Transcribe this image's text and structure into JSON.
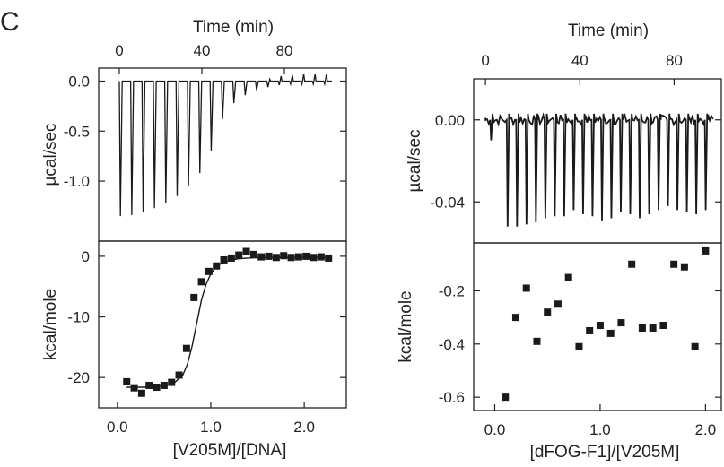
{
  "figure": {
    "panel_label": "C"
  },
  "chart_data": [
    {
      "id": "left-raw",
      "type": "line",
      "title": "",
      "top_xlabel": "Time (min)",
      "ylabel": "µcal/sec",
      "top_xticks": [
        0,
        40,
        80
      ],
      "top_xtick_labels": [
        "0",
        "40",
        "80"
      ],
      "yticks": [
        0.0,
        -0.5,
        -1.0
      ],
      "ytick_labels": [
        "0.0",
        "-0.5",
        "-1.0"
      ],
      "xlim": [
        -10,
        110
      ],
      "ylim": [
        -1.6,
        0.13
      ],
      "baseline": 0.0,
      "injections": {
        "time": [
          0,
          5.5,
          11,
          16.5,
          22,
          27.5,
          33,
          38.5,
          44,
          49.5,
          55,
          60.5,
          66,
          71.5,
          77,
          82.5,
          88,
          93.5,
          99
        ],
        "peak_min": [
          -1.35,
          -1.34,
          -1.31,
          -1.27,
          -1.22,
          -1.15,
          -1.05,
          -0.92,
          -0.7,
          -0.38,
          -0.22,
          -0.14,
          -0.09,
          -0.06,
          -0.04,
          -0.03,
          -0.03,
          -0.03,
          -0.03
        ],
        "overshoot_max": [
          0,
          0,
          0,
          0,
          0,
          0,
          0,
          0,
          0,
          0,
          0,
          0,
          0,
          0.02,
          0.05,
          0.06,
          0.07,
          0.07,
          0.07
        ]
      }
    },
    {
      "id": "left-binding",
      "type": "scatter",
      "title": "",
      "xlabel": "[V205M]/[DNA]",
      "ylabel": "kcal/mole",
      "xticks": [
        0.0,
        1.0,
        2.0
      ],
      "xtick_labels": [
        "0.0",
        "1.0",
        "2.0"
      ],
      "yticks": [
        0,
        -10,
        -20
      ],
      "ytick_labels": [
        "0",
        "-10",
        "-20"
      ],
      "xlim": [
        -0.2,
        2.45
      ],
      "ylim": [
        -25,
        2.5
      ],
      "series": [
        {
          "x": [
            0.1,
            0.18,
            0.26,
            0.34,
            0.42,
            0.5,
            0.58,
            0.66,
            0.74,
            0.82,
            0.9,
            0.98,
            1.06,
            1.14,
            1.22,
            1.3,
            1.38,
            1.46,
            1.54,
            1.62,
            1.7,
            1.78,
            1.86,
            1.94,
            2.02,
            2.1,
            2.18,
            2.26
          ],
          "y": [
            -20.7,
            -21.7,
            -22.6,
            -21.3,
            -21.6,
            -21.3,
            -20.8,
            -19.6,
            -15.2,
            -6.8,
            -4.2,
            -2.5,
            -1.6,
            -0.6,
            -0.3,
            0.2,
            0.8,
            0.3,
            -0.1,
            0.0,
            -0.2,
            0.1,
            -0.2,
            -0.1,
            0.0,
            -0.2,
            -0.1,
            -0.3
          ],
          "fit": {
            "x": [
              0.1,
              0.3,
              0.5,
              0.6,
              0.7,
              0.75,
              0.8,
              0.85,
              0.9,
              0.95,
              1.0,
              1.05,
              1.1,
              1.2,
              1.3,
              1.4,
              1.5,
              1.6,
              1.8,
              2.0,
              2.2,
              2.26
            ],
            "y": [
              -21.6,
              -21.6,
              -21.4,
              -21.0,
              -19.6,
              -17.8,
              -14.8,
              -11.0,
              -7.2,
              -4.6,
              -2.9,
              -1.9,
              -1.3,
              -0.7,
              -0.4,
              -0.3,
              -0.25,
              -0.2,
              -0.2,
              -0.2,
              -0.2,
              -0.2
            ]
          }
        }
      ]
    },
    {
      "id": "right-raw",
      "type": "line",
      "title": "",
      "top_xlabel": "Time (min)",
      "ylabel": "µcal/sec",
      "top_xticks": [
        0,
        40,
        80
      ],
      "top_xtick_labels": [
        "0",
        "40",
        "80"
      ],
      "yticks": [
        0.0,
        -0.04
      ],
      "ytick_labels": [
        "0.00",
        "-0.04"
      ],
      "xlim": [
        -5,
        100
      ],
      "ylim": [
        -0.06,
        0.02
      ],
      "baseline": 0.0,
      "injections": {
        "time": [
          2,
          9,
          13,
          17,
          21,
          25,
          29,
          33,
          37,
          41,
          45,
          49,
          53,
          57,
          61,
          65,
          69,
          73,
          77,
          81,
          85,
          89,
          93
        ],
        "peak_min": [
          -0.01,
          -0.052,
          -0.052,
          -0.051,
          -0.05,
          -0.048,
          -0.047,
          -0.047,
          -0.044,
          -0.046,
          -0.047,
          -0.049,
          -0.048,
          -0.045,
          -0.046,
          -0.048,
          -0.046,
          -0.044,
          -0.042,
          -0.044,
          -0.045,
          -0.046,
          -0.044
        ]
      }
    },
    {
      "id": "right-binding",
      "type": "scatter",
      "title": "",
      "xlabel": "[dFOG-F1]/[V205M]",
      "ylabel": "kcal/mole",
      "xticks": [
        0.0,
        1.0,
        2.0
      ],
      "xtick_labels": [
        "0.0",
        "1.0",
        "2.0"
      ],
      "yticks": [
        -0.2,
        -0.4,
        -0.6
      ],
      "ytick_labels": [
        "-0.2",
        "-0.4",
        "-0.6"
      ],
      "xlim": [
        -0.2,
        2.15
      ],
      "ylim": [
        -0.65,
        -0.02
      ],
      "series": [
        {
          "x": [
            0.1,
            0.2,
            0.3,
            0.4,
            0.5,
            0.6,
            0.7,
            0.8,
            0.9,
            1.0,
            1.1,
            1.2,
            1.3,
            1.4,
            1.5,
            1.6,
            1.7,
            1.8,
            1.9,
            2.0
          ],
          "y": [
            -0.6,
            -0.3,
            -0.19,
            -0.39,
            -0.28,
            -0.25,
            -0.15,
            -0.41,
            -0.35,
            -0.33,
            -0.36,
            -0.32,
            -0.1,
            -0.34,
            -0.34,
            -0.33,
            -0.1,
            -0.11,
            -0.41,
            -0.05
          ]
        }
      ]
    }
  ]
}
